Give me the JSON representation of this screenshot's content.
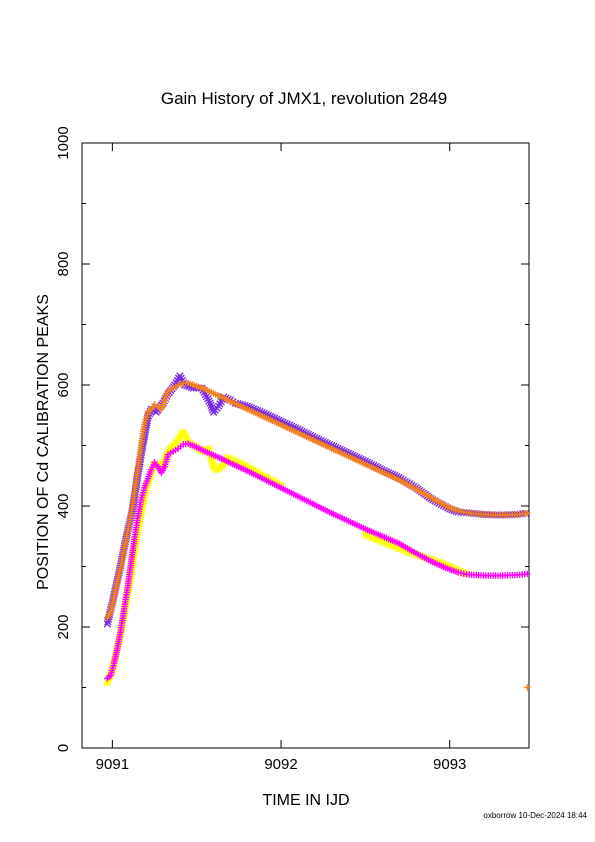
{
  "chart_data": {
    "type": "scatter",
    "title": "Gain History of JMX1, revolution 2849",
    "xlabel": "TIME IN IJD",
    "ylabel": "POSITION OF Cd CALIBRATION PEAKS",
    "xlim": [
      9090.82,
      9093.47
    ],
    "ylim": [
      0,
      1000
    ],
    "x_ticks": [
      9091,
      9092,
      9093
    ],
    "x_tick_labels": [
      "9091",
      "9092",
      "9093"
    ],
    "y_ticks": [
      0,
      200,
      400,
      600,
      800,
      1000
    ],
    "y_tick_labels": [
      "0",
      "200",
      "400",
      "600",
      "800",
      "1000"
    ],
    "grid": false,
    "legend": "none",
    "footer": "oxborrow 10-Dec-2024 18:44",
    "series": [
      {
        "marker": "x",
        "color": "#7b2be2",
        "points": [
          [
            9090.97,
            205
          ],
          [
            9091.0,
            240
          ],
          [
            9091.04,
            290
          ],
          [
            9091.08,
            345
          ],
          [
            9091.12,
            395
          ],
          [
            9091.15,
            450
          ],
          [
            9091.18,
            500
          ],
          [
            9091.21,
            545
          ],
          [
            9091.23,
            560
          ],
          [
            9091.26,
            555
          ],
          [
            9091.3,
            570
          ],
          [
            9091.33,
            585
          ],
          [
            9091.37,
            600
          ],
          [
            9091.4,
            615
          ],
          [
            9091.43,
            600
          ],
          [
            9091.48,
            595
          ],
          [
            9091.53,
            595
          ],
          [
            9091.58,
            570
          ],
          [
            9091.6,
            555
          ],
          [
            9091.63,
            565
          ],
          [
            9091.66,
            580
          ],
          [
            9091.7,
            575
          ],
          [
            9091.73,
            570
          ],
          [
            9091.8,
            565
          ],
          [
            9091.9,
            553
          ],
          [
            9092.0,
            540
          ],
          [
            9092.1,
            527
          ],
          [
            9092.2,
            513
          ],
          [
            9092.3,
            500
          ],
          [
            9092.4,
            487
          ],
          [
            9092.5,
            474
          ],
          [
            9092.6,
            460
          ],
          [
            9092.7,
            447
          ],
          [
            9092.8,
            430
          ],
          [
            9092.9,
            410
          ],
          [
            9093.0,
            395
          ],
          [
            9093.05,
            390
          ],
          [
            9093.1,
            389
          ],
          [
            9093.2,
            386
          ],
          [
            9093.3,
            385
          ],
          [
            9093.4,
            386
          ],
          [
            9093.45,
            388
          ]
        ]
      },
      {
        "marker": "+",
        "color": "#f08020",
        "points": [
          [
            9090.97,
            215
          ],
          [
            9090.99,
            225
          ],
          [
            9091.01,
            250
          ],
          [
            9091.03,
            275
          ],
          [
            9091.05,
            300
          ],
          [
            9091.07,
            330
          ],
          [
            9091.09,
            355
          ],
          [
            9091.11,
            385
          ],
          [
            9091.13,
            420
          ],
          [
            9091.15,
            460
          ],
          [
            9091.17,
            500
          ],
          [
            9091.19,
            535
          ],
          [
            9091.21,
            555
          ],
          [
            9091.23,
            560
          ],
          [
            9091.25,
            568
          ],
          [
            9091.27,
            565
          ],
          [
            9091.29,
            560
          ],
          [
            9091.31,
            575
          ],
          [
            9091.33,
            590
          ],
          [
            9091.36,
            595
          ],
          [
            9091.39,
            600
          ],
          [
            9091.42,
            603
          ],
          [
            9091.45,
            603
          ],
          [
            9091.5,
            598
          ],
          [
            9091.55,
            593
          ],
          [
            9091.6,
            586
          ],
          [
            9091.65,
            580
          ],
          [
            9091.7,
            573
          ],
          [
            9091.8,
            560
          ],
          [
            9091.9,
            547
          ],
          [
            9092.0,
            534
          ],
          [
            9092.1,
            521
          ],
          [
            9092.2,
            508
          ],
          [
            9092.3,
            495
          ],
          [
            9092.4,
            482
          ],
          [
            9092.5,
            469
          ],
          [
            9092.6,
            456
          ],
          [
            9092.7,
            443
          ],
          [
            9092.8,
            428
          ],
          [
            9092.9,
            412
          ],
          [
            9093.0,
            397
          ],
          [
            9093.05,
            392
          ],
          [
            9093.1,
            389
          ],
          [
            9093.2,
            386
          ],
          [
            9093.3,
            385
          ],
          [
            9093.4,
            386
          ],
          [
            9093.46,
            388
          ],
          [
            9093.46,
            100
          ]
        ]
      },
      {
        "marker": "*",
        "color": "#ffff00",
        "points": [
          [
            9090.97,
            108
          ],
          [
            9091.0,
            130
          ],
          [
            9091.05,
            190
          ],
          [
            9091.1,
            270
          ],
          [
            9091.15,
            360
          ],
          [
            9091.2,
            430
          ],
          [
            9091.25,
            470
          ],
          [
            9091.3,
            468
          ],
          [
            9091.33,
            490
          ],
          [
            9091.38,
            505
          ],
          [
            9091.42,
            522
          ],
          [
            9091.45,
            505
          ],
          [
            9091.5,
            497
          ],
          [
            9091.53,
            490
          ],
          [
            9091.57,
            495
          ],
          [
            9091.6,
            465
          ],
          [
            9091.62,
            460
          ],
          [
            9091.65,
            465
          ],
          [
            9091.68,
            480
          ],
          [
            9091.72,
            475
          ],
          [
            9091.8,
            465
          ],
          [
            9092.0,
            433
          ],
          [
            9092.5,
            353
          ],
          [
            9092.7,
            330
          ],
          [
            9093.0,
            300
          ],
          [
            9093.1,
            287
          ]
        ]
      },
      {
        "marker": "+",
        "color": "#ff00ff",
        "points": [
          [
            9090.97,
            115
          ],
          [
            9090.99,
            120
          ],
          [
            9091.01,
            140
          ],
          [
            9091.03,
            165
          ],
          [
            9091.05,
            195
          ],
          [
            9091.07,
            230
          ],
          [
            9091.09,
            265
          ],
          [
            9091.11,
            305
          ],
          [
            9091.13,
            345
          ],
          [
            9091.15,
            380
          ],
          [
            9091.17,
            410
          ],
          [
            9091.19,
            430
          ],
          [
            9091.21,
            445
          ],
          [
            9091.23,
            460
          ],
          [
            9091.25,
            472
          ],
          [
            9091.27,
            465
          ],
          [
            9091.29,
            455
          ],
          [
            9091.31,
            465
          ],
          [
            9091.33,
            485
          ],
          [
            9091.36,
            490
          ],
          [
            9091.39,
            495
          ],
          [
            9091.42,
            502
          ],
          [
            9091.45,
            503
          ],
          [
            9091.5,
            497
          ],
          [
            9091.55,
            490
          ],
          [
            9091.6,
            484
          ],
          [
            9091.65,
            478
          ],
          [
            9091.7,
            471
          ],
          [
            9091.8,
            458
          ],
          [
            9091.9,
            444
          ],
          [
            9092.0,
            430
          ],
          [
            9092.1,
            416
          ],
          [
            9092.2,
            402
          ],
          [
            9092.3,
            388
          ],
          [
            9092.4,
            375
          ],
          [
            9092.5,
            362
          ],
          [
            9092.6,
            350
          ],
          [
            9092.7,
            338
          ],
          [
            9092.8,
            322
          ],
          [
            9092.9,
            307
          ],
          [
            9093.0,
            295
          ],
          [
            9093.05,
            290
          ],
          [
            9093.1,
            287
          ],
          [
            9093.2,
            285
          ],
          [
            9093.3,
            285
          ],
          [
            9093.4,
            286
          ],
          [
            9093.46,
            288
          ]
        ]
      }
    ]
  }
}
